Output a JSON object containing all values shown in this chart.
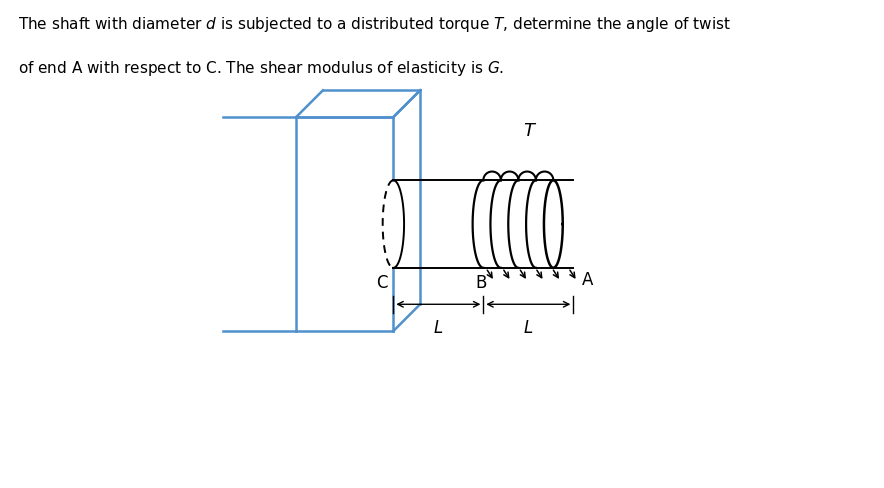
{
  "wall_color": "#4f90cd",
  "shaft_color": "black",
  "wall_lw": 1.8,
  "shaft_lw": 1.4,
  "bg_color": "white",
  "label_C": "C",
  "label_B": "B",
  "label_A": "A",
  "label_T": "T",
  "label_L1": "L",
  "label_L2": "L",
  "fig_width": 8.84,
  "fig_height": 4.89,
  "dpi": 100,
  "header1": "The shaft with diameter $d$ is subjected to a distributed torque $T$, determine the angle of twist",
  "header2": "of end A with respect to C. The shear modulus of elasticity is $G$."
}
